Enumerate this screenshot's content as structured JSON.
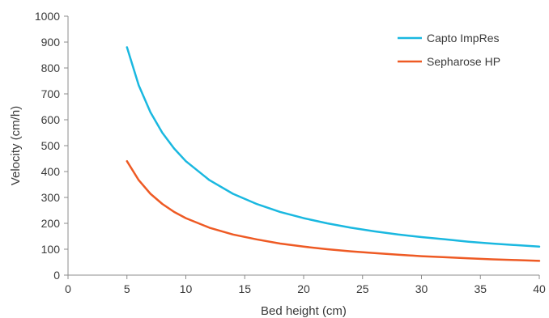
{
  "chart_data": {
    "type": "line",
    "title": "",
    "xlabel": "Bed height (cm)",
    "ylabel": "Velocity (cm/h)",
    "xlim": [
      0,
      40
    ],
    "ylim": [
      0,
      1000
    ],
    "xticks": [
      0,
      5,
      10,
      15,
      20,
      25,
      30,
      35,
      40
    ],
    "yticks": [
      0,
      100,
      200,
      300,
      400,
      500,
      600,
      700,
      800,
      900,
      1000
    ],
    "grid": false,
    "legend_position": "top-right",
    "x": [
      5,
      6,
      7,
      8,
      9,
      10,
      12,
      14,
      16,
      18,
      20,
      22,
      24,
      26,
      28,
      30,
      32,
      34,
      36,
      38,
      40
    ],
    "series": [
      {
        "name": "Capto ImpRes",
        "color": "#1ab8e0",
        "values": [
          880,
          733,
          629,
          550,
          489,
          440,
          367,
          314,
          275,
          244,
          220,
          200,
          183,
          169,
          157,
          147,
          138,
          129,
          122,
          116,
          110
        ]
      },
      {
        "name": "Sepharose HP",
        "color": "#ee5a24",
        "values": [
          440,
          367,
          314,
          275,
          244,
          220,
          183,
          157,
          138,
          122,
          110,
          100,
          92,
          85,
          79,
          73,
          69,
          65,
          61,
          58,
          55
        ]
      }
    ]
  }
}
